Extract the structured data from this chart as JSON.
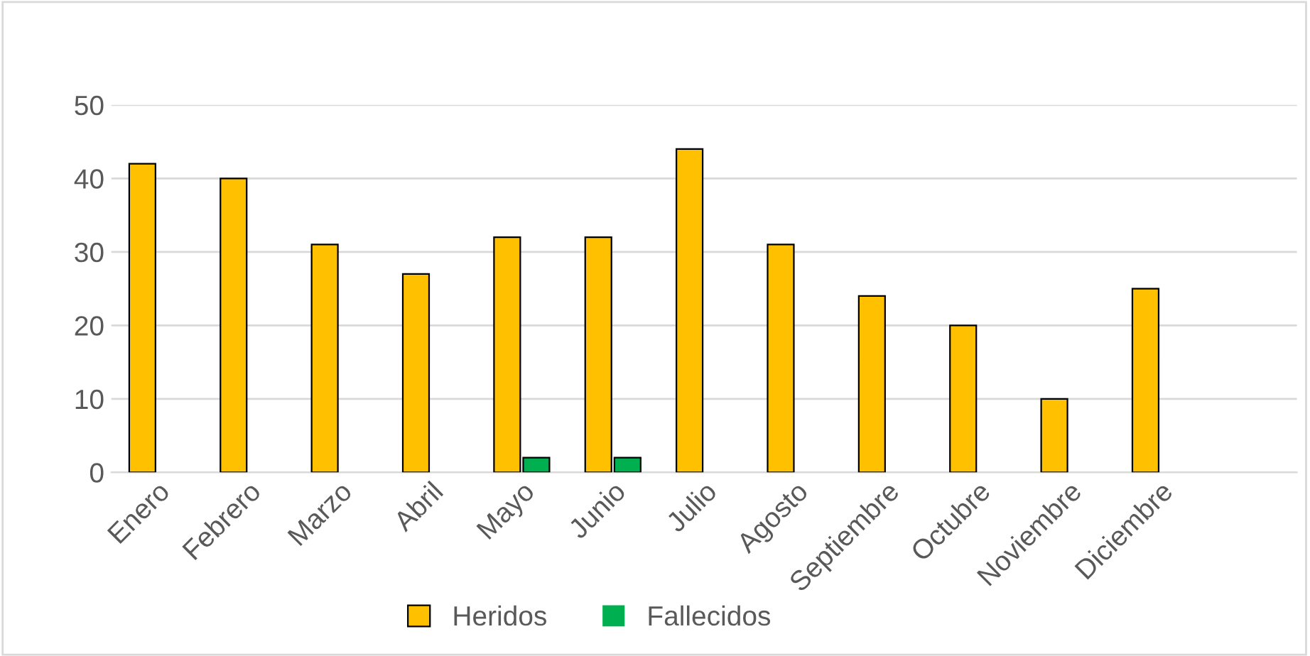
{
  "chart_data": {
    "type": "bar",
    "categories": [
      "Enero",
      "Febrero",
      "Marzo",
      "Abril",
      "Mayo",
      "Junio",
      "Julio",
      "Agosto",
      "Septiembre",
      "Octubre",
      "Noviembre",
      "Diciembre"
    ],
    "series": [
      {
        "name": "Heridos",
        "color": "#ffc000",
        "values": [
          42,
          40,
          31,
          27,
          32,
          32,
          44,
          31,
          24,
          20,
          10,
          25
        ]
      },
      {
        "name": "Fallecidos",
        "color": "#00b050",
        "values": [
          0,
          0,
          0,
          0,
          2,
          2,
          0,
          0,
          0,
          0,
          0,
          0
        ]
      }
    ],
    "ylim": [
      0,
      50
    ],
    "yticks": [
      0,
      10,
      20,
      30,
      40,
      50
    ],
    "grid": "y",
    "legend": "bottom"
  }
}
